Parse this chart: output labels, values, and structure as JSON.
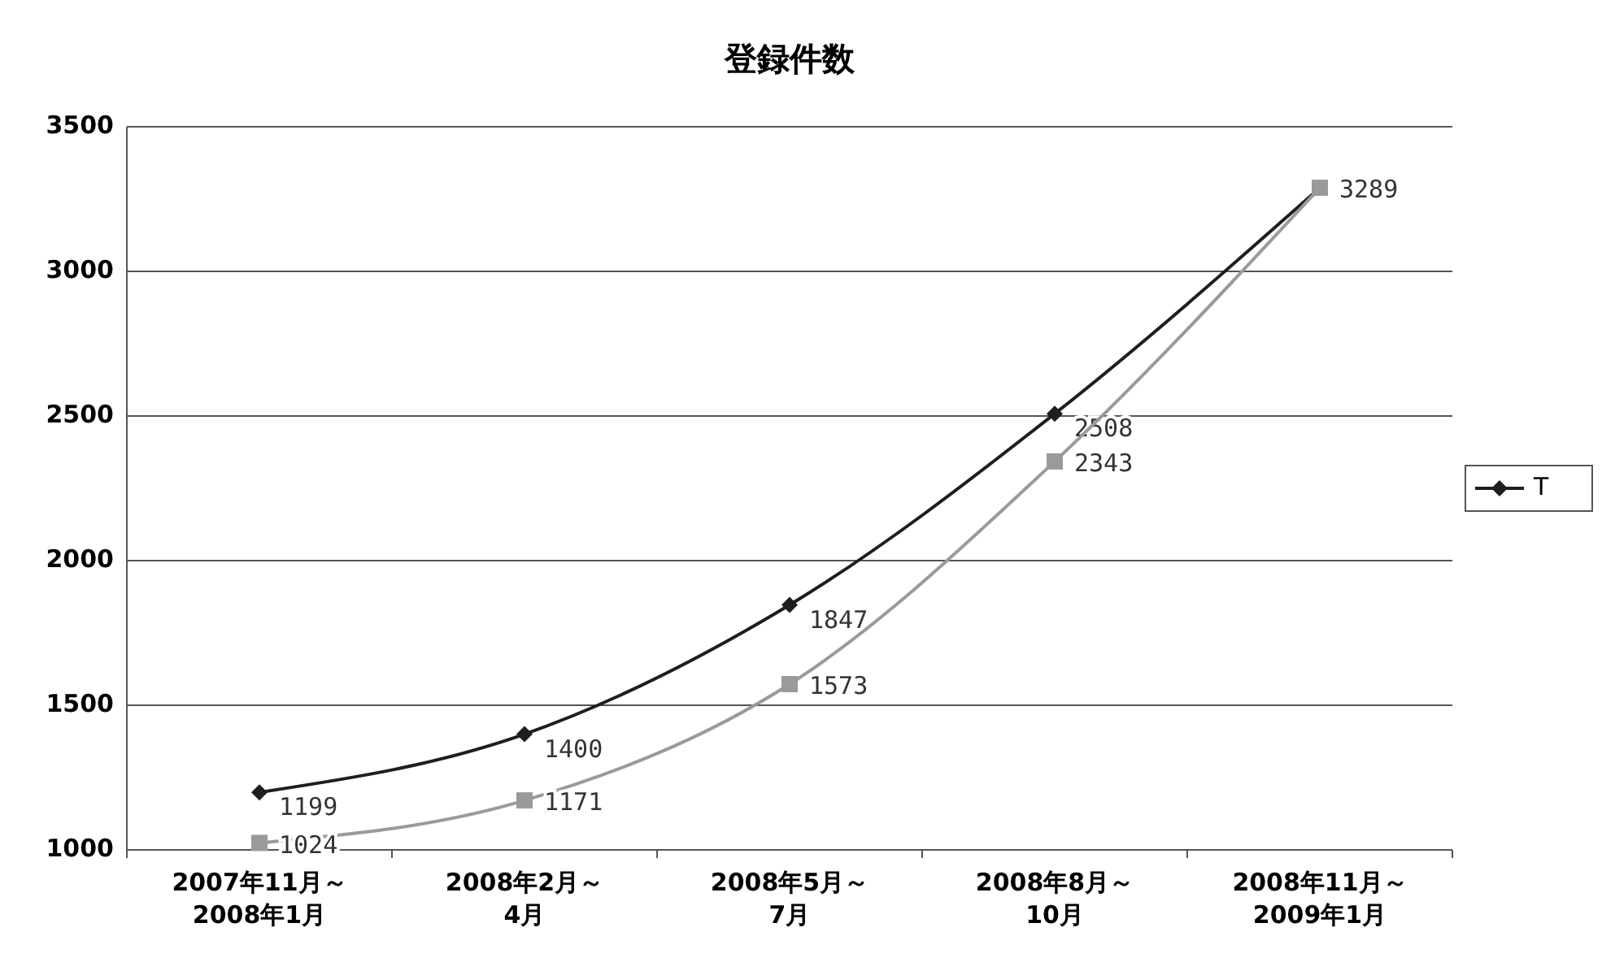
{
  "chart_data": {
    "type": "line",
    "title": "登録件数",
    "categories": [
      "2007年11月～2008年1月",
      "2008年2月～4月",
      "2008年5月～7月",
      "2008年8月～10月",
      "2008年11月～2009年1月"
    ],
    "series": [
      {
        "name": "T",
        "color": "#1e1e1e",
        "values": [
          1199,
          1400,
          1847,
          2508,
          3289
        ],
        "marker": "diamond",
        "value_labels": [
          "1199",
          "1400",
          "1847",
          "2508",
          null
        ]
      },
      {
        "color": "#9a9a9a",
        "values": [
          1024,
          1171,
          1573,
          2343,
          3289
        ],
        "marker": "square",
        "value_labels": [
          "1024",
          "1171",
          "1573",
          "2343",
          "3289"
        ]
      }
    ],
    "ylim": [
      1000,
      3500
    ],
    "yticks": [
      1000,
      1500,
      2000,
      2500,
      3000,
      3500
    ],
    "grid": "y",
    "legend": "right"
  }
}
